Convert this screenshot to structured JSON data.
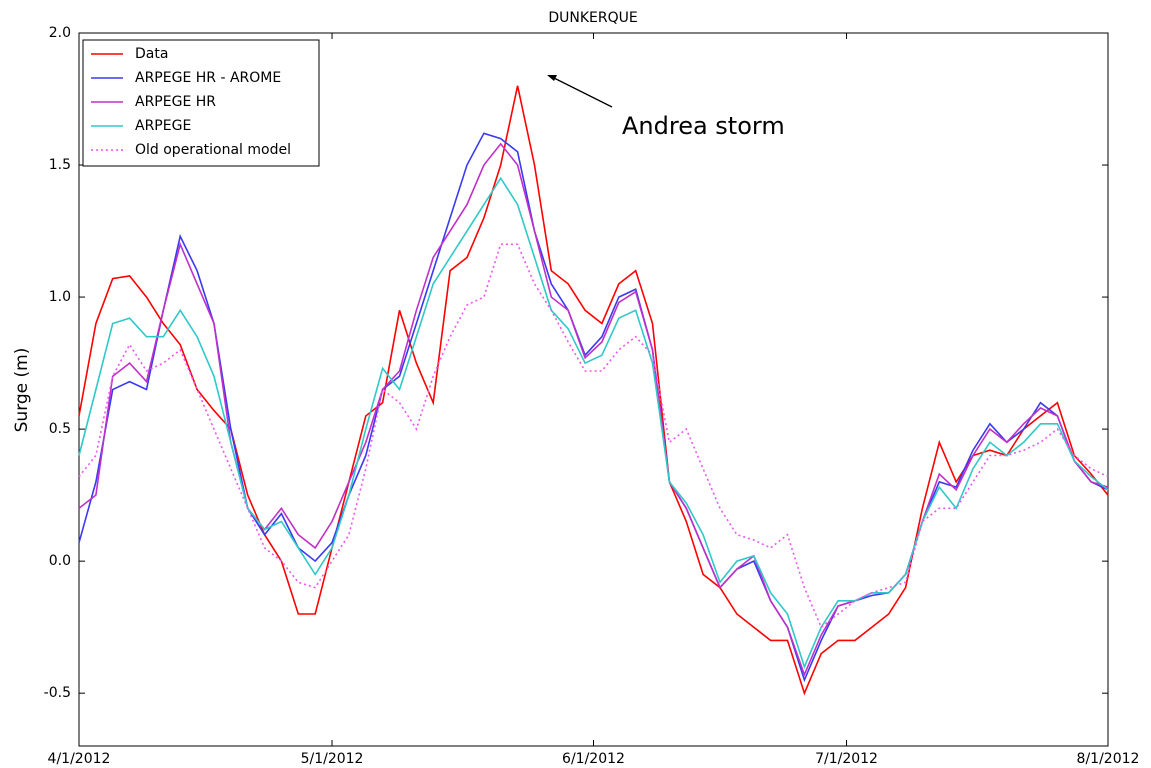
{
  "chart_data": {
    "type": "line",
    "title": "DUNKERQUE",
    "y_label": "Surge (m)",
    "annotation": "Andrea storm",
    "x": [
      "2012-04-01",
      "2012-04-03",
      "2012-04-05",
      "2012-04-07",
      "2012-04-09",
      "2012-04-11",
      "2012-04-13",
      "2012-04-15",
      "2012-04-17",
      "2012-04-19",
      "2012-04-21",
      "2012-04-23",
      "2012-04-25",
      "2012-04-27",
      "2012-04-29",
      "2012-05-01",
      "2012-05-03",
      "2012-05-05",
      "2012-05-07",
      "2012-05-09",
      "2012-05-11",
      "2012-05-13",
      "2012-05-15",
      "2012-05-17",
      "2012-05-19",
      "2012-05-21",
      "2012-05-23",
      "2012-05-25",
      "2012-05-27",
      "2012-05-29",
      "2012-05-31",
      "2012-06-02",
      "2012-06-04",
      "2012-06-06",
      "2012-06-08",
      "2012-06-10",
      "2012-06-12",
      "2012-06-14",
      "2012-06-16",
      "2012-06-18",
      "2012-06-20",
      "2012-06-22",
      "2012-06-24",
      "2012-06-26",
      "2012-06-28",
      "2012-06-30",
      "2012-07-02",
      "2012-07-04",
      "2012-07-06",
      "2012-07-08",
      "2012-07-10",
      "2012-07-12",
      "2012-07-14",
      "2012-07-16",
      "2012-07-18",
      "2012-07-20",
      "2012-07-22",
      "2012-07-24",
      "2012-07-26",
      "2012-07-28",
      "2012-07-30",
      "2012-08-01"
    ],
    "series": [
      {
        "name": "Data",
        "color": "#ff0000",
        "dash": "solid",
        "values": [
          0.55,
          0.9,
          1.07,
          1.08,
          1.0,
          0.9,
          0.82,
          0.65,
          0.57,
          0.5,
          0.25,
          0.1,
          0.0,
          -0.2,
          -0.2,
          0.05,
          0.3,
          0.55,
          0.6,
          0.95,
          0.75,
          0.6,
          1.1,
          1.15,
          1.3,
          1.5,
          1.8,
          1.5,
          1.1,
          1.05,
          0.95,
          0.9,
          1.05,
          1.1,
          0.9,
          0.3,
          0.15,
          -0.05,
          -0.1,
          -0.2,
          -0.25,
          -0.3,
          -0.3,
          -0.5,
          -0.35,
          -0.3,
          -0.3,
          -0.25,
          -0.2,
          -0.1,
          0.2,
          0.45,
          0.3,
          0.4,
          0.42,
          0.4,
          0.5,
          0.55,
          0.6,
          0.4,
          0.33,
          0.25
        ]
      },
      {
        "name": "ARPEGE HR - AROME",
        "color": "#3a3af0",
        "dash": "solid",
        "values": [
          0.07,
          0.3,
          0.65,
          0.68,
          0.65,
          0.95,
          1.23,
          1.1,
          0.9,
          0.5,
          0.2,
          0.1,
          0.18,
          0.05,
          0.0,
          0.07,
          0.25,
          0.4,
          0.65,
          0.7,
          0.9,
          1.1,
          1.3,
          1.5,
          1.62,
          1.6,
          1.55,
          1.25,
          1.05,
          0.95,
          0.78,
          0.85,
          1.0,
          1.03,
          0.8,
          0.3,
          0.2,
          0.05,
          -0.1,
          -0.03,
          0.0,
          -0.15,
          -0.25,
          -0.45,
          -0.3,
          -0.17,
          -0.15,
          -0.13,
          -0.12,
          -0.05,
          0.15,
          0.3,
          0.28,
          0.42,
          0.52,
          0.45,
          0.5,
          0.6,
          0.55,
          0.38,
          0.3,
          0.27
        ]
      },
      {
        "name": "ARPEGE HR",
        "color": "#c030c8",
        "dash": "solid",
        "values": [
          0.2,
          0.25,
          0.7,
          0.75,
          0.68,
          0.95,
          1.2,
          1.05,
          0.9,
          0.45,
          0.2,
          0.12,
          0.2,
          0.1,
          0.05,
          0.15,
          0.3,
          0.45,
          0.65,
          0.72,
          0.95,
          1.15,
          1.25,
          1.35,
          1.5,
          1.58,
          1.5,
          1.25,
          1.0,
          0.95,
          0.77,
          0.83,
          0.98,
          1.02,
          0.8,
          0.3,
          0.2,
          0.05,
          -0.1,
          -0.03,
          0.02,
          -0.15,
          -0.25,
          -0.43,
          -0.28,
          -0.17,
          -0.15,
          -0.12,
          -0.12,
          -0.05,
          0.15,
          0.33,
          0.27,
          0.4,
          0.5,
          0.45,
          0.52,
          0.58,
          0.55,
          0.38,
          0.3,
          0.28
        ]
      },
      {
        "name": "ARPEGE",
        "color": "#30c8c8",
        "dash": "solid",
        "values": [
          0.4,
          0.65,
          0.9,
          0.92,
          0.85,
          0.85,
          0.95,
          0.85,
          0.7,
          0.45,
          0.2,
          0.12,
          0.15,
          0.05,
          -0.05,
          0.05,
          0.25,
          0.5,
          0.73,
          0.65,
          0.85,
          1.05,
          1.15,
          1.25,
          1.35,
          1.45,
          1.35,
          1.15,
          0.95,
          0.88,
          0.75,
          0.78,
          0.92,
          0.95,
          0.75,
          0.3,
          0.22,
          0.1,
          -0.08,
          0.0,
          0.02,
          -0.12,
          -0.2,
          -0.4,
          -0.25,
          -0.15,
          -0.15,
          -0.12,
          -0.12,
          -0.05,
          0.15,
          0.28,
          0.2,
          0.35,
          0.45,
          0.4,
          0.45,
          0.52,
          0.52,
          0.38,
          0.32,
          0.27
        ]
      },
      {
        "name": "Old operational model",
        "color": "#ee55ee",
        "dash": "dotted",
        "values": [
          0.32,
          0.4,
          0.7,
          0.82,
          0.72,
          0.75,
          0.8,
          0.65,
          0.5,
          0.35,
          0.2,
          0.05,
          0.0,
          -0.08,
          -0.1,
          0.0,
          0.1,
          0.35,
          0.65,
          0.6,
          0.5,
          0.7,
          0.85,
          0.97,
          1.0,
          1.2,
          1.2,
          1.05,
          0.95,
          0.83,
          0.72,
          0.72,
          0.8,
          0.85,
          0.78,
          0.45,
          0.5,
          0.35,
          0.2,
          0.1,
          0.08,
          0.05,
          0.1,
          -0.1,
          -0.25,
          -0.2,
          -0.15,
          -0.12,
          -0.1,
          -0.08,
          0.15,
          0.2,
          0.2,
          0.3,
          0.4,
          0.4,
          0.42,
          0.45,
          0.5,
          0.4,
          0.35,
          0.32
        ]
      }
    ],
    "xlim": [
      "2012-04-01",
      "2012-08-01"
    ],
    "xticks": [
      {
        "value": "2012-04-01",
        "label": "4/1/2012"
      },
      {
        "value": "2012-05-01",
        "label": "5/1/2012"
      },
      {
        "value": "2012-06-01",
        "label": "6/1/2012"
      },
      {
        "value": "2012-07-01",
        "label": "7/1/2012"
      },
      {
        "value": "2012-08-01",
        "label": "8/1/2012"
      }
    ],
    "ylim": [
      -0.7,
      2.0
    ],
    "yticks": [
      {
        "value": -0.5,
        "label": "-0.5"
      },
      {
        "value": 0,
        "label": "0.0"
      },
      0.5,
      {
        "value": 1,
        "label": "1.0"
      },
      1.5,
      {
        "value": 2,
        "label": "2.0"
      }
    ],
    "legend": "upper left",
    "grid": false
  }
}
